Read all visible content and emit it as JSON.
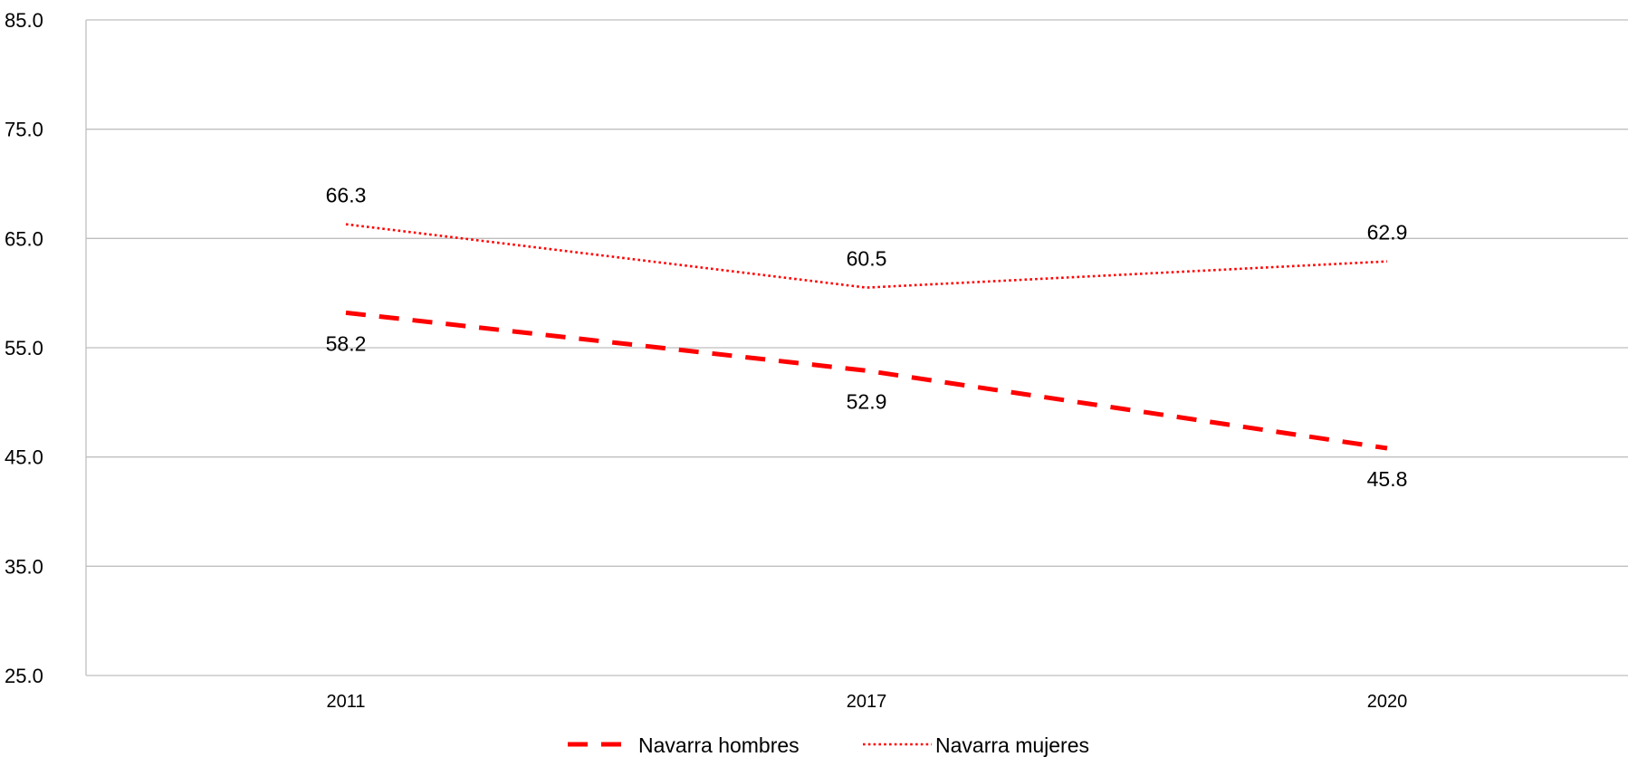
{
  "chart_data": {
    "type": "line",
    "title": "",
    "xlabel": "",
    "ylabel": "",
    "categories": [
      "2011",
      "2017",
      "2020"
    ],
    "ylim": [
      25.0,
      85.0
    ],
    "yticks": [
      "85.0",
      "75.0",
      "65.0",
      "55.0",
      "45.0",
      "35.0",
      "25.0"
    ],
    "grid": true,
    "legend_position": "bottom-center",
    "series": [
      {
        "name": "Navarra hombres",
        "values": [
          58.2,
          52.9,
          45.8
        ],
        "labels": [
          "58.2",
          "52.9",
          "45.8"
        ],
        "label_placement": "below",
        "color": "#ff0000",
        "line_style": "dashed"
      },
      {
        "name": "Navarra mujeres",
        "values": [
          66.3,
          60.5,
          62.9
        ],
        "labels": [
          "66.3",
          "60.5",
          "62.9"
        ],
        "label_placement": "above",
        "color": "#ff0000",
        "line_style": "dotted"
      }
    ]
  }
}
